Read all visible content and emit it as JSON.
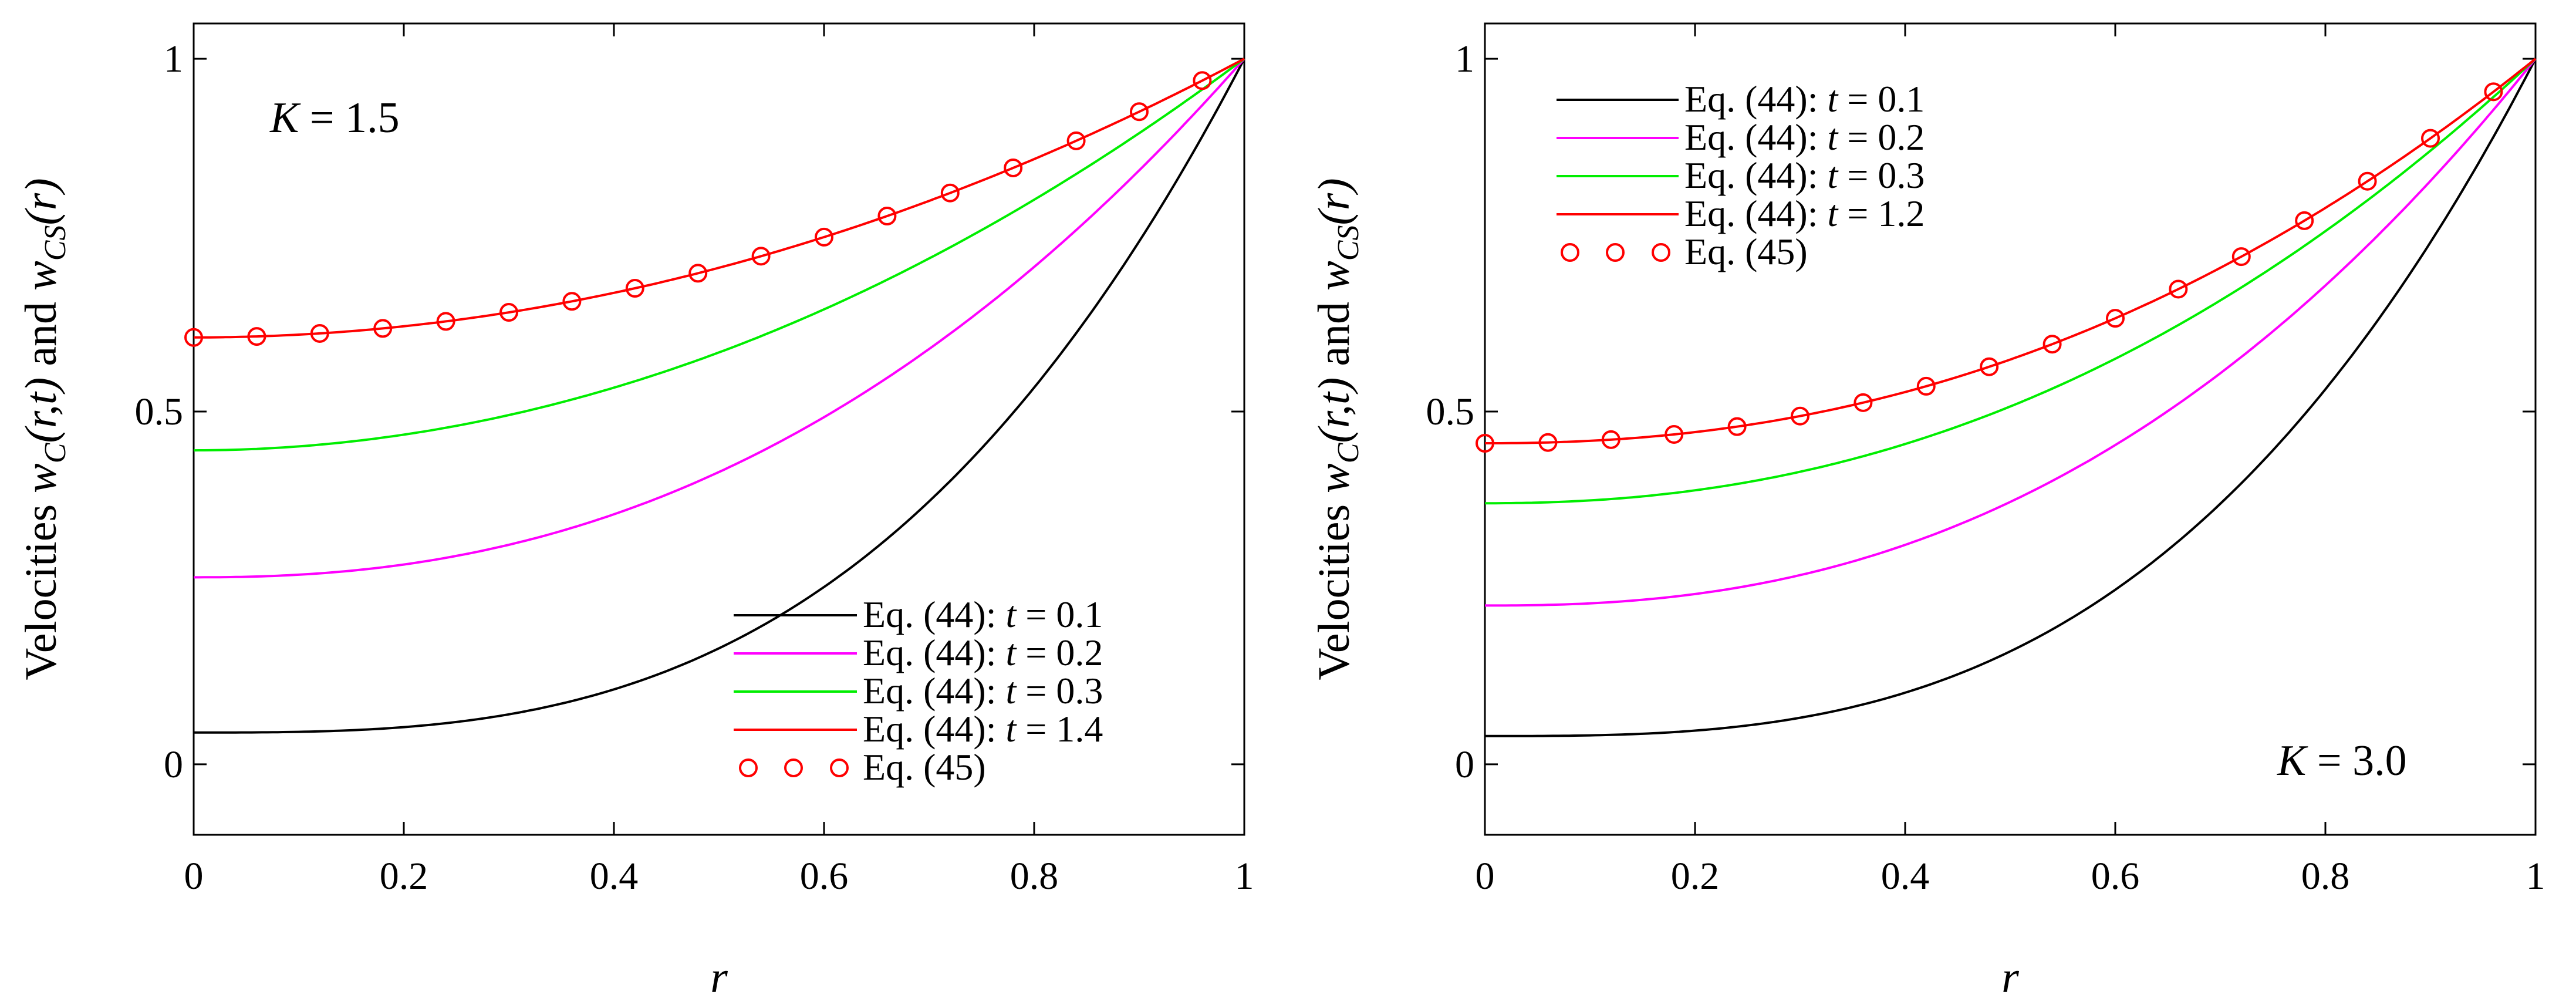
{
  "chart_data": [
    {
      "type": "line",
      "panel": "left",
      "annotation": "K = 1.5",
      "annotation_var": "K",
      "annotation_eq": " = 1.5",
      "ylabel_text": "Velocities w_C(r,t) and w_CS(r)",
      "ylabel": {
        "prefix": "Velocities ",
        "w1": "w",
        "sub1": "C",
        "args1": "(r,t)",
        "mid": " and ",
        "w2": "w",
        "sub2": "CS",
        "args2": "(r)"
      },
      "xlabel": "r",
      "xlim": [
        0,
        1
      ],
      "ylim": [
        -0.1,
        1.05
      ],
      "xticks": [
        0,
        0.2,
        0.4,
        0.6,
        0.8,
        1
      ],
      "xtick_labels": [
        "0",
        "0.2",
        "0.4",
        "0.6",
        "0.8",
        "1"
      ],
      "yticks": [
        0,
        0.5,
        1
      ],
      "ytick_labels": [
        "0",
        "0.5",
        "1"
      ],
      "legend_position": "bottom-right",
      "series": [
        {
          "name": "Eq. (44): t = 0.1",
          "prefix": "Eq. (44): ",
          "var": "t",
          "eq": " = 0.1",
          "color": "#000000",
          "style": "line",
          "w0": 0.045,
          "p": 3.0
        },
        {
          "name": "Eq. (44): t = 0.2",
          "prefix": "Eq. (44): ",
          "var": "t",
          "eq": " = 0.2",
          "color": "#ff00ff",
          "style": "line",
          "w0": 0.265,
          "p": 2.3
        },
        {
          "name": "Eq. (44): t = 0.3",
          "prefix": "Eq. (44): ",
          "var": "t",
          "eq": " = 0.3",
          "color": "#00ee00",
          "style": "line",
          "w0": 0.445,
          "p": 2.0
        },
        {
          "name": "Eq. (44): t = 1.4",
          "prefix": "Eq. (44): ",
          "var": "t",
          "eq": " = 1.4",
          "color": "#ff0000",
          "style": "line",
          "w0": 0.605,
          "p": 2.0
        },
        {
          "name": "Eq. (45)",
          "prefix": "Eq. (45)",
          "var": "",
          "eq": "",
          "color": "#ff0000",
          "style": "markers",
          "w0": 0.605,
          "p": 2.0
        }
      ],
      "marker_x": [
        0,
        0.06,
        0.12,
        0.18,
        0.24,
        0.3,
        0.36,
        0.42,
        0.48,
        0.54,
        0.6,
        0.66,
        0.72,
        0.78,
        0.84,
        0.9,
        0.96
      ]
    },
    {
      "type": "line",
      "panel": "right",
      "annotation": "K = 3.0",
      "annotation_var": "K",
      "annotation_eq": " = 3.0",
      "ylabel_text": "Velocities w_C(r,t) and w_CS(r)",
      "ylabel": {
        "prefix": "Velocities ",
        "w1": "w",
        "sub1": "C",
        "args1": "(r,t)",
        "mid": " and ",
        "w2": "w",
        "sub2": "CS",
        "args2": "(r)"
      },
      "xlabel": "r",
      "xlim": [
        0,
        1
      ],
      "ylim": [
        -0.1,
        1.05
      ],
      "xticks": [
        0,
        0.2,
        0.4,
        0.6,
        0.8,
        1
      ],
      "xtick_labels": [
        "0",
        "0.2",
        "0.4",
        "0.6",
        "0.8",
        "1"
      ],
      "yticks": [
        0,
        0.5,
        1
      ],
      "ytick_labels": [
        "0",
        "0.5",
        "1"
      ],
      "legend_position": "top-left",
      "series": [
        {
          "name": "Eq. (44): t = 0.1",
          "prefix": "Eq. (44): ",
          "var": "t",
          "eq": " = 0.1",
          "color": "#000000",
          "style": "line",
          "w0": 0.04,
          "p": 3.0
        },
        {
          "name": "Eq. (44): t = 0.2",
          "prefix": "Eq. (44): ",
          "var": "t",
          "eq": " = 0.2",
          "color": "#ff00ff",
          "style": "line",
          "w0": 0.225,
          "p": 2.4
        },
        {
          "name": "Eq. (44): t = 0.3",
          "prefix": "Eq. (44): ",
          "var": "t",
          "eq": " = 0.3",
          "color": "#00ee00",
          "style": "line",
          "w0": 0.37,
          "p": 2.2
        },
        {
          "name": "Eq. (44): t = 1.2",
          "prefix": "Eq. (44): ",
          "var": "t",
          "eq": " = 1.2",
          "color": "#ff0000",
          "style": "line",
          "w0": 0.455,
          "p": 2.2
        },
        {
          "name": "Eq. (45)",
          "prefix": "Eq. (45)",
          "var": "",
          "eq": "",
          "color": "#ff0000",
          "style": "markers",
          "w0": 0.455,
          "p": 2.2
        }
      ],
      "marker_x": [
        0,
        0.06,
        0.12,
        0.18,
        0.24,
        0.3,
        0.36,
        0.42,
        0.48,
        0.54,
        0.6,
        0.66,
        0.72,
        0.78,
        0.84,
        0.9,
        0.96
      ]
    }
  ]
}
